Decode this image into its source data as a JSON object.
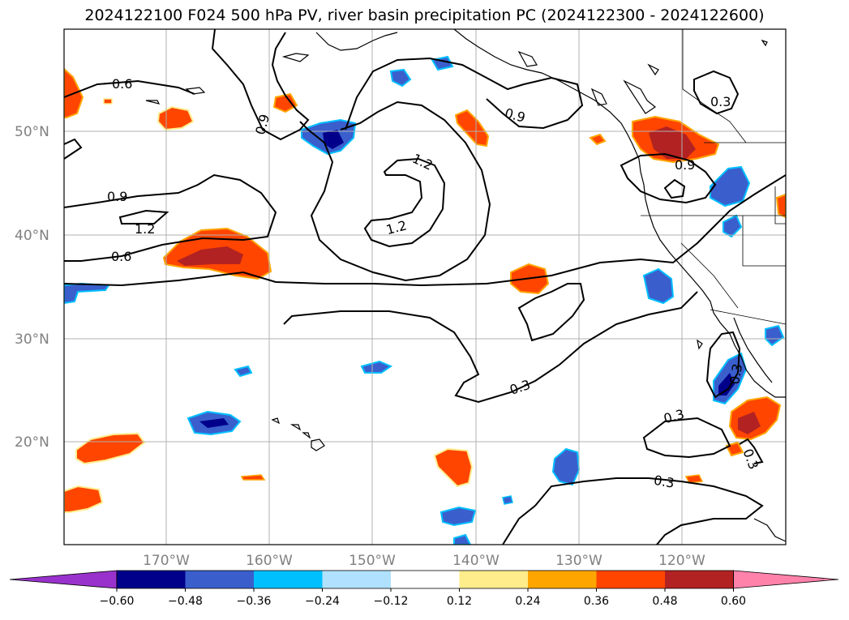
{
  "title": "2024122100 F024 500 hPa PV, river basin precipitation PC (2024122300 - 2024122600)",
  "map": {
    "lat_labels": [
      "50°N",
      "40°N",
      "30°N",
      "20°N"
    ],
    "lon_labels": [
      "170°W",
      "160°W",
      "150°W",
      "140°W",
      "130°W",
      "120°W"
    ],
    "contour_labels": [
      "0.6",
      "0.9",
      "1.2",
      "0.6",
      "0.9",
      "1.2",
      "1.2",
      "0.9",
      "0.3",
      "0.9",
      "0.3",
      "0.3",
      "0.3",
      "0.3",
      "0.3"
    ]
  },
  "colorbar": {
    "ticks": [
      "−0.60",
      "−0.48",
      "−0.36",
      "−0.24",
      "−0.12",
      "0.12",
      "0.24",
      "0.36",
      "0.48",
      "0.60"
    ],
    "colors": [
      "#9932CC",
      "#00008B",
      "#3A5FCD",
      "#00BFFF",
      "#B0E2FF",
      "#FFFFFF",
      "#FFEC8B",
      "#FFA500",
      "#FF4500",
      "#B22222",
      "#FF82AB"
    ]
  }
}
